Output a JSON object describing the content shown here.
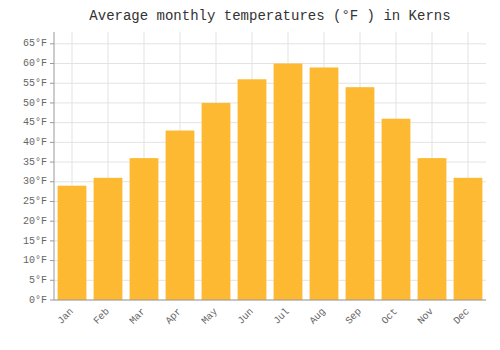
{
  "chart_data": {
    "type": "bar",
    "title": "Average monthly temperatures (°F ) in Kerns",
    "categories": [
      "Jan",
      "Feb",
      "Mar",
      "Apr",
      "May",
      "Jun",
      "Jul",
      "Aug",
      "Sep",
      "Oct",
      "Nov",
      "Dec"
    ],
    "values": [
      29,
      31,
      36,
      43,
      50,
      56,
      60,
      59,
      54,
      46,
      36,
      31
    ],
    "color": "#FDB931",
    "ylim": [
      0,
      68
    ],
    "yticks": [
      {
        "value": 0,
        "label": "0°F"
      },
      {
        "value": 5,
        "label": "5°F"
      },
      {
        "value": 10,
        "label": "10°F"
      },
      {
        "value": 15,
        "label": "15°F"
      },
      {
        "value": 20,
        "label": "20°F"
      },
      {
        "value": 25,
        "label": "25°F"
      },
      {
        "value": 30,
        "label": "30°F"
      },
      {
        "value": 35,
        "label": "35°F"
      },
      {
        "value": 40,
        "label": "40°F"
      },
      {
        "value": 45,
        "label": "45°F"
      },
      {
        "value": 50,
        "label": "50°F"
      },
      {
        "value": 55,
        "label": "55°F"
      },
      {
        "value": 60,
        "label": "60°F"
      },
      {
        "value": 65,
        "label": "65°F"
      }
    ],
    "grid": true
  }
}
